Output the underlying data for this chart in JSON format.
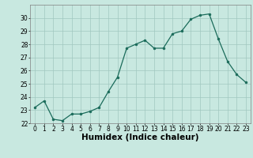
{
  "x": [
    0,
    1,
    2,
    3,
    4,
    5,
    6,
    7,
    8,
    9,
    10,
    11,
    12,
    13,
    14,
    15,
    16,
    17,
    18,
    19,
    20,
    21,
    22,
    23
  ],
  "y": [
    23.2,
    23.7,
    22.3,
    22.2,
    22.7,
    22.7,
    22.9,
    23.2,
    24.4,
    25.5,
    27.7,
    28.0,
    28.3,
    27.7,
    27.7,
    28.8,
    29.0,
    29.9,
    30.2,
    30.3,
    28.4,
    26.7,
    25.7,
    25.1
  ],
  "xlabel": "Humidex (Indice chaleur)",
  "ylim": [
    22,
    31
  ],
  "xlim": [
    -0.5,
    23.5
  ],
  "yticks": [
    22,
    23,
    24,
    25,
    26,
    27,
    28,
    29,
    30
  ],
  "xticks": [
    0,
    1,
    2,
    3,
    4,
    5,
    6,
    7,
    8,
    9,
    10,
    11,
    12,
    13,
    14,
    15,
    16,
    17,
    18,
    19,
    20,
    21,
    22,
    23
  ],
  "line_color": "#1a6b5a",
  "marker_color": "#1a6b5a",
  "bg_color": "#c8e8e0",
  "grid_color": "#a0c8c0",
  "tick_label_fontsize": 5.5,
  "xlabel_fontsize": 7.5
}
